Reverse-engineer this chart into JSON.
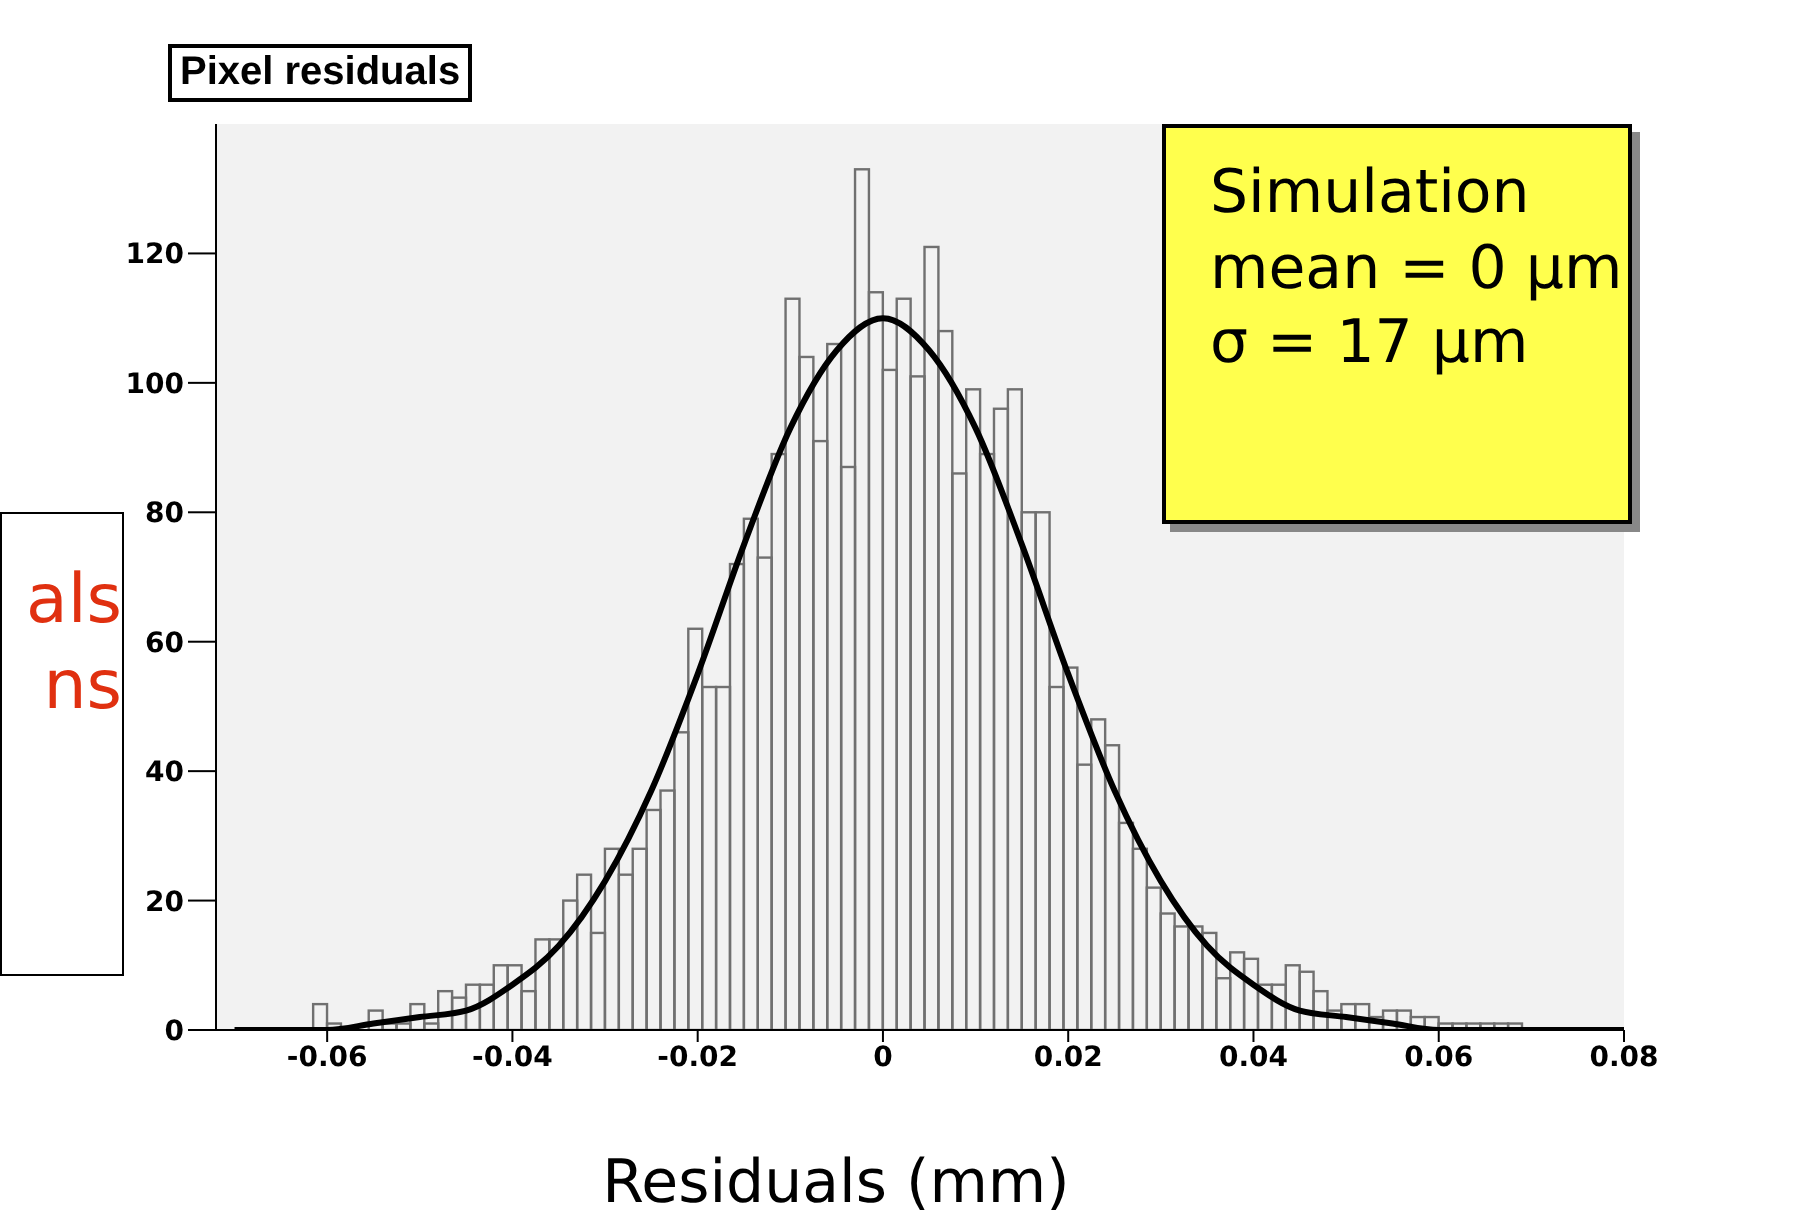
{
  "chart_data": {
    "type": "histogram",
    "title": "Pixel residuals",
    "xlabel": "Residuals (mm)",
    "bins": [
      -0.072,
      -0.0705,
      -0.069,
      -0.0675,
      -0.066,
      -0.0645,
      -0.063,
      -0.0615,
      -0.06,
      -0.0585,
      -0.057,
      -0.0555,
      -0.054,
      -0.0525,
      -0.051,
      -0.0495,
      -0.048,
      -0.0465,
      -0.045,
      -0.0435,
      -0.042,
      -0.0405,
      -0.039,
      -0.0375,
      -0.036,
      -0.0345,
      -0.033,
      -0.0315,
      -0.03,
      -0.0285,
      -0.027,
      -0.0255,
      -0.024,
      -0.0225,
      -0.021,
      -0.0195,
      -0.018,
      -0.0165,
      -0.015,
      -0.0135,
      -0.012,
      -0.0105,
      -0.009,
      -0.0075,
      -0.006,
      -0.0045,
      -0.003,
      -0.0015,
      0,
      0.0015,
      0.003,
      0.0045,
      0.006,
      0.0075,
      0.009,
      0.0105,
      0.012,
      0.0135,
      0.015,
      0.0165,
      0.018,
      0.0195,
      0.021,
      0.0225,
      0.024,
      0.0255,
      0.027,
      0.0285,
      0.03,
      0.0315,
      0.033,
      0.0345,
      0.036,
      0.0375,
      0.039,
      0.0405,
      0.042,
      0.0435,
      0.045,
      0.0465,
      0.048,
      0.0495,
      0.051,
      0.0525,
      0.054,
      0.0555,
      0.057,
      0.0585,
      0.06,
      0.0615,
      0.063,
      0.0645,
      0.066,
      0.0675,
      0.069,
      0.0705,
      0.072,
      0.0735,
      0.075,
      0.0765,
      0.078
    ],
    "values": [
      0,
      0,
      0,
      0,
      0,
      0,
      0,
      4,
      1,
      0,
      0,
      3,
      1,
      1,
      4,
      1,
      6,
      5,
      7,
      7,
      10,
      10,
      6,
      14,
      14,
      20,
      24,
      15,
      28,
      24,
      28,
      34,
      37,
      46,
      62,
      53,
      53,
      72,
      79,
      73,
      89,
      113,
      104,
      91,
      106,
      87,
      133,
      114,
      102,
      113,
      101,
      121,
      108,
      86,
      99,
      89,
      96,
      99,
      80,
      80,
      53,
      56,
      41,
      48,
      44,
      32,
      28,
      22,
      18,
      16,
      16,
      15,
      8,
      12,
      11,
      7,
      7,
      10,
      9,
      6,
      3,
      4,
      4,
      2,
      3,
      3,
      2,
      2,
      1,
      1,
      1,
      1,
      1,
      1,
      0,
      0,
      0,
      0,
      0,
      0
    ],
    "color": "#707070",
    "series": [
      {
        "type": "line",
        "color": "#000000",
        "x": [
          -0.07,
          -0.065,
          -0.06,
          -0.055,
          -0.05,
          -0.045,
          -0.04,
          -0.035,
          -0.03,
          -0.025,
          -0.02,
          -0.015,
          -0.01,
          -0.005,
          0,
          0.005,
          0.01,
          0.015,
          0.02,
          0.025,
          0.03,
          0.035,
          0.04,
          0.045,
          0.05,
          0.055,
          0.06,
          0.065,
          0.07,
          0.075,
          0.08
        ],
        "values": [
          0,
          0,
          0,
          1,
          2,
          3,
          7,
          13,
          23,
          37,
          55,
          75,
          93,
          105,
          110,
          105,
          93,
          75,
          55,
          37,
          23,
          13,
          7,
          3,
          2,
          1,
          0,
          0,
          0,
          0,
          0
        ]
      }
    ],
    "xlim": [
      -0.072,
      0.08
    ],
    "xticks": [
      -0.06,
      -0.04,
      -0.02,
      0,
      0.02,
      0.04,
      0.06,
      0.08
    ],
    "ylim": [
      0,
      140
    ],
    "yticks": [
      0,
      20,
      40,
      60,
      80,
      100,
      120
    ],
    "annotations": [
      "Simulation\nmean = 0 μm\nσ = 17 μm",
      "als\nns"
    ]
  }
}
